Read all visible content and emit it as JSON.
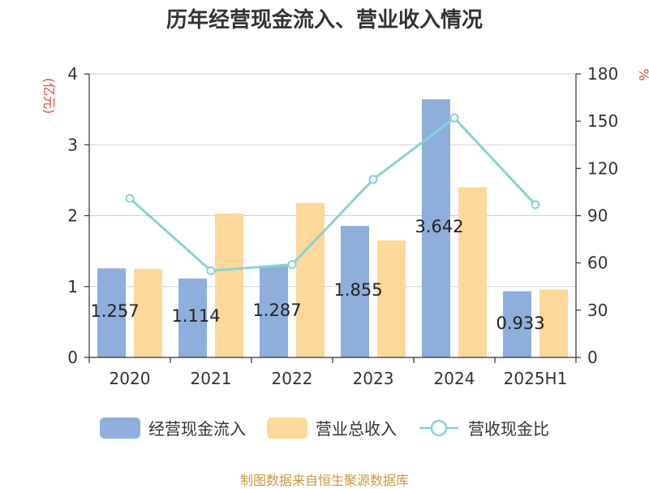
{
  "chart_data": {
    "type": "bar",
    "title": "历年经营现金流入、营业收入情况",
    "categories": [
      "2020",
      "2021",
      "2022",
      "2023",
      "2024",
      "2025H1"
    ],
    "series": [
      {
        "name": "经营现金流入",
        "kind": "bar",
        "axis": "left",
        "color": "#8eaedc",
        "values": [
          1.257,
          1.114,
          1.287,
          1.855,
          3.642,
          0.933
        ],
        "data_labels": [
          "1.257",
          "1.114",
          "1.287",
          "1.855",
          "3.642",
          "0.933"
        ]
      },
      {
        "name": "营业总收入",
        "kind": "bar",
        "axis": "left",
        "color": "#fdd89b",
        "values": [
          1.25,
          2.03,
          2.18,
          1.65,
          2.4,
          0.96
        ]
      },
      {
        "name": "营收现金比",
        "kind": "line",
        "axis": "right",
        "color": "#85d3d6",
        "values": [
          101,
          55,
          59,
          113,
          152,
          97
        ]
      }
    ],
    "left_axis": {
      "label": "(亿元)",
      "label_color": "#e8443a",
      "ylim": [
        0,
        4
      ],
      "ticks": [
        "0",
        "1",
        "2",
        "3",
        "4"
      ]
    },
    "right_axis": {
      "label": "%",
      "label_color": "#e8443a",
      "ylim": [
        0,
        180
      ],
      "ticks": [
        "0",
        "30",
        "60",
        "90",
        "120",
        "150",
        "180"
      ]
    },
    "grid": true,
    "legend_position": "bottom"
  },
  "footer": {
    "text": "制图数据来自恒生聚源数据库",
    "color": "#c89a3c"
  }
}
